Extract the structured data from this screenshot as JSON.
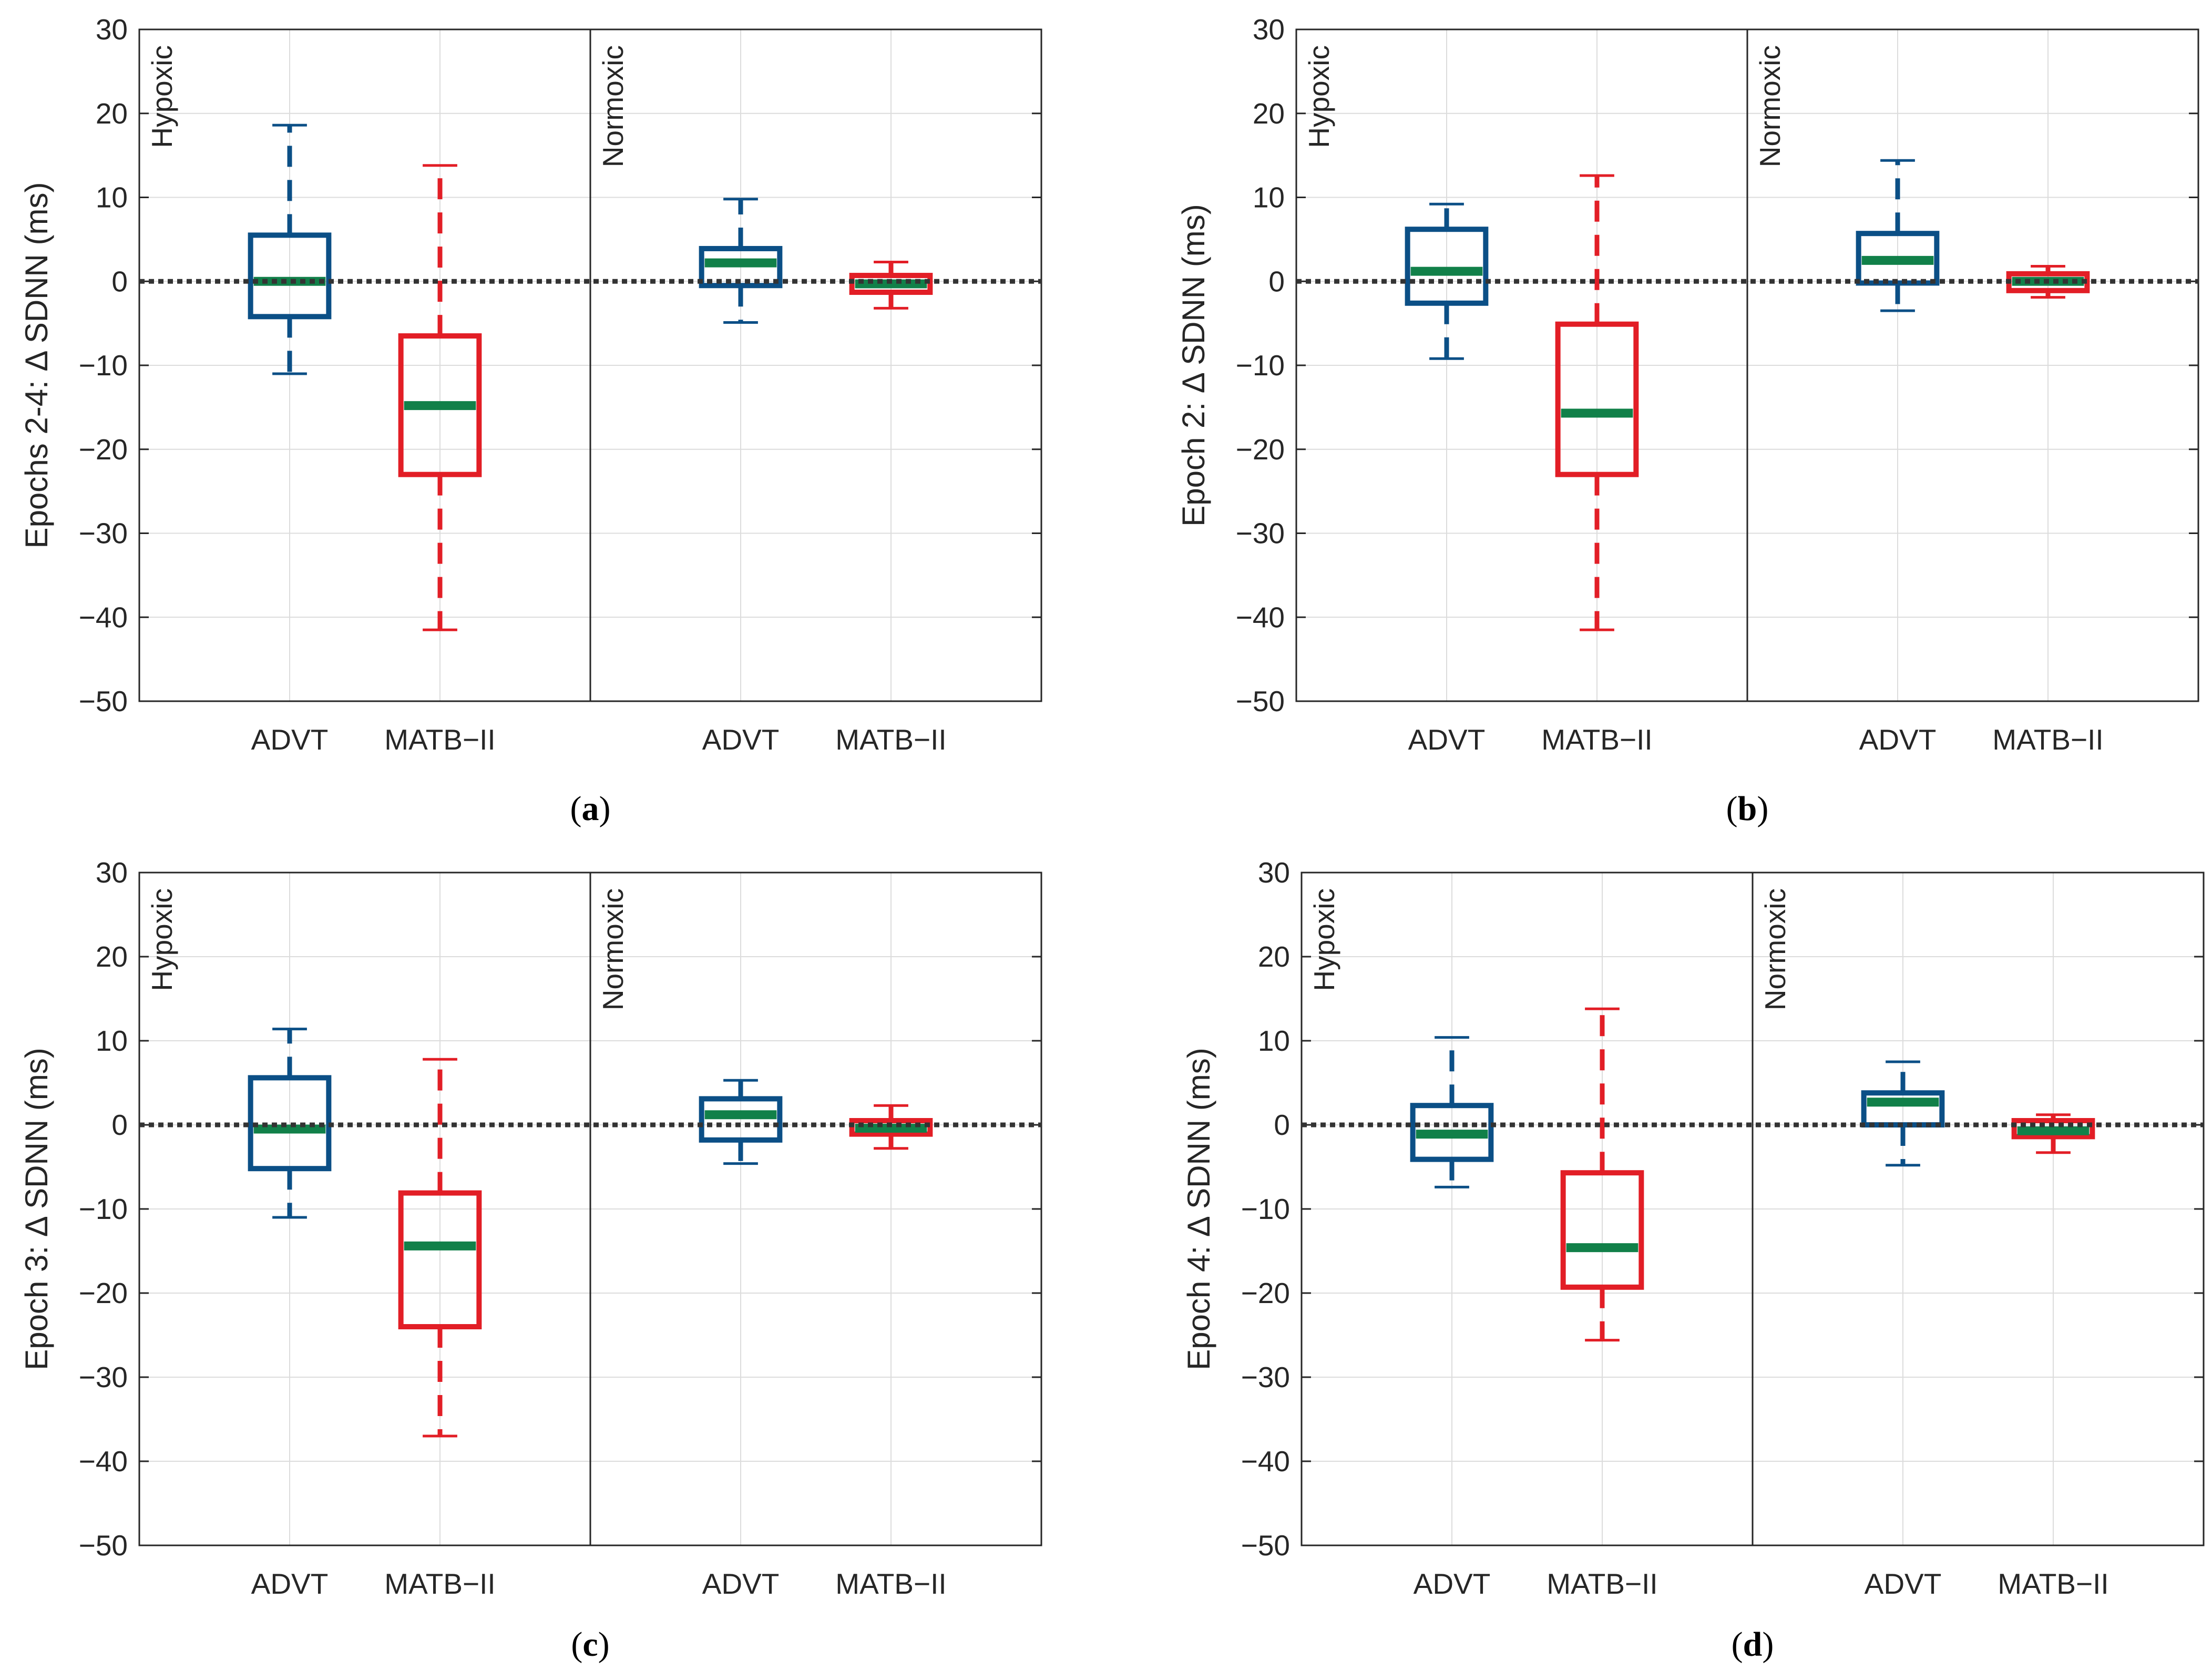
{
  "colors": {
    "advt": "#0b4f86",
    "matb": "#e21e26",
    "median": "#118049",
    "grid": "#dcdcdc",
    "axis": "#262626",
    "zero_line": "#333333"
  },
  "chart_data": [
    {
      "type": "box",
      "panel": "a",
      "caption_open": "(",
      "caption_letter": "a",
      "caption_close": ")",
      "ylabel": "Epochs 2-4: Δ SDNN (ms)",
      "ylim": [
        -50,
        30
      ],
      "yticks": [
        30,
        20,
        10,
        0,
        -10,
        -20,
        -30,
        -40,
        -50
      ],
      "ytick_labels": [
        "30",
        "20",
        "10",
        "0",
        "−10",
        "−20",
        "−30",
        "−40",
        "−50"
      ],
      "reference_line": 0,
      "groups": [
        "Hypoxic",
        "Normoxic"
      ],
      "categories": [
        "ADVT",
        "MATB−II",
        "ADVT",
        "MATB−II"
      ],
      "boxes": [
        {
          "group": "Hypoxic",
          "series": "ADVT",
          "whisker_low": -11,
          "q1": -4.2,
          "median": 0,
          "q3": 5.5,
          "whisker_high": 18.6
        },
        {
          "group": "Hypoxic",
          "series": "MATB-II",
          "whisker_low": -41.5,
          "q1": -23,
          "median": -14.8,
          "q3": -6.5,
          "whisker_high": 13.8
        },
        {
          "group": "Normoxic",
          "series": "ADVT",
          "whisker_low": -4.9,
          "q1": -0.5,
          "median": 2.2,
          "q3": 3.9,
          "whisker_high": 9.8
        },
        {
          "group": "Normoxic",
          "series": "MATB-II",
          "whisker_low": -3.2,
          "q1": -1.3,
          "median": -0.3,
          "q3": 0.7,
          "whisker_high": 2.3
        }
      ]
    },
    {
      "type": "box",
      "panel": "b",
      "caption_open": "(",
      "caption_letter": "b",
      "caption_close": ")",
      "ylabel": "Epoch 2: Δ SDNN (ms)",
      "ylim": [
        -50,
        30
      ],
      "yticks": [
        30,
        20,
        10,
        0,
        -10,
        -20,
        -30,
        -40,
        -50
      ],
      "ytick_labels": [
        "30",
        "20",
        "10",
        "0",
        "−10",
        "−20",
        "−30",
        "−40",
        "−50"
      ],
      "reference_line": 0,
      "groups": [
        "Hypoxic",
        "Normoxic"
      ],
      "categories": [
        "ADVT",
        "MATB−II",
        "ADVT",
        "MATB−II"
      ],
      "boxes": [
        {
          "group": "Hypoxic",
          "series": "ADVT",
          "whisker_low": -9.2,
          "q1": -2.6,
          "median": 1.2,
          "q3": 6.2,
          "whisker_high": 9.2
        },
        {
          "group": "Hypoxic",
          "series": "MATB-II",
          "whisker_low": -41.5,
          "q1": -23,
          "median": -15.7,
          "q3": -5.1,
          "whisker_high": 12.6
        },
        {
          "group": "Normoxic",
          "series": "ADVT",
          "whisker_low": -3.5,
          "q1": -0.2,
          "median": 2.5,
          "q3": 5.7,
          "whisker_high": 14.4
        },
        {
          "group": "Normoxic",
          "series": "MATB-II",
          "whisker_low": -1.9,
          "q1": -1.1,
          "median": 0,
          "q3": 0.9,
          "whisker_high": 1.8
        }
      ]
    },
    {
      "type": "box",
      "panel": "c",
      "caption_open": "(",
      "caption_letter": "c",
      "caption_close": ")",
      "ylabel": "Epoch 3: Δ SDNN (ms)",
      "ylim": [
        -50,
        30
      ],
      "yticks": [
        30,
        20,
        10,
        0,
        -10,
        -20,
        -30,
        -40,
        -50
      ],
      "ytick_labels": [
        "30",
        "20",
        "10",
        "0",
        "−10",
        "−20",
        "−30",
        "−40",
        "−50"
      ],
      "reference_line": 0,
      "groups": [
        "Hypoxic",
        "Normoxic"
      ],
      "categories": [
        "ADVT",
        "MATB−II",
        "ADVT",
        "MATB−II"
      ],
      "boxes": [
        {
          "group": "Hypoxic",
          "series": "ADVT",
          "whisker_low": -11,
          "q1": -5.2,
          "median": -0.5,
          "q3": 5.6,
          "whisker_high": 11.4
        },
        {
          "group": "Hypoxic",
          "series": "MATB-II",
          "whisker_low": -37,
          "q1": -24,
          "median": -14.4,
          "q3": -8.1,
          "whisker_high": 7.8
        },
        {
          "group": "Normoxic",
          "series": "ADVT",
          "whisker_low": -4.6,
          "q1": -1.8,
          "median": 1.2,
          "q3": 3.1,
          "whisker_high": 5.3
        },
        {
          "group": "Normoxic",
          "series": "MATB-II",
          "whisker_low": -2.8,
          "q1": -1.1,
          "median": -0.4,
          "q3": 0.5,
          "whisker_high": 2.3
        }
      ]
    },
    {
      "type": "box",
      "panel": "d",
      "caption_open": "(",
      "caption_letter": "d",
      "caption_close": ")",
      "ylabel": "Epoch 4: Δ SDNN (ms)",
      "ylim": [
        -50,
        30
      ],
      "yticks": [
        30,
        20,
        10,
        0,
        -10,
        -20,
        -30,
        -40,
        -50
      ],
      "ytick_labels": [
        "30",
        "20",
        "10",
        "0",
        "−10",
        "−20",
        "−30",
        "−40",
        "−50"
      ],
      "reference_line": 0,
      "groups": [
        "Hypoxic",
        "Normoxic"
      ],
      "categories": [
        "ADVT",
        "MATB−II",
        "ADVT",
        "MATB−II"
      ],
      "boxes": [
        {
          "group": "Hypoxic",
          "series": "ADVT",
          "whisker_low": -7.4,
          "q1": -4.1,
          "median": -1.1,
          "q3": 2.3,
          "whisker_high": 10.4
        },
        {
          "group": "Hypoxic",
          "series": "MATB-II",
          "whisker_low": -25.6,
          "q1": -19.3,
          "median": -14.6,
          "q3": -5.7,
          "whisker_high": 13.8
        },
        {
          "group": "Normoxic",
          "series": "ADVT",
          "whisker_low": -4.8,
          "q1": 0,
          "median": 2.7,
          "q3": 3.8,
          "whisker_high": 7.5
        },
        {
          "group": "Normoxic",
          "series": "MATB-II",
          "whisker_low": -3.3,
          "q1": -1.4,
          "median": -0.7,
          "q3": 0.5,
          "whisker_high": 1.2
        }
      ]
    }
  ]
}
